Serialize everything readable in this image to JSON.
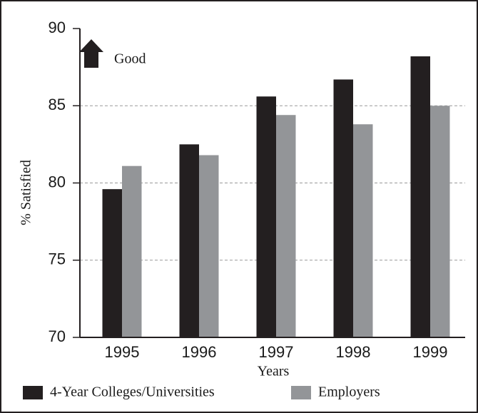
{
  "chart_data": {
    "type": "bar",
    "ylabel": "% Satisfied",
    "xlabel": "Years",
    "annotation": "Good",
    "categories": [
      "1995",
      "1996",
      "1997",
      "1998",
      "1999"
    ],
    "series": [
      {
        "name": "4-Year Colleges/Universities",
        "color": "#231f20",
        "values": [
          79.6,
          82.5,
          85.6,
          86.7,
          88.2
        ]
      },
      {
        "name": "Employers",
        "color": "#939598",
        "values": [
          81.1,
          81.8,
          84.4,
          83.8,
          85.0
        ]
      }
    ],
    "ylim": [
      70,
      90
    ],
    "yticks": [
      70,
      75,
      80,
      85,
      90
    ],
    "grid": true
  }
}
